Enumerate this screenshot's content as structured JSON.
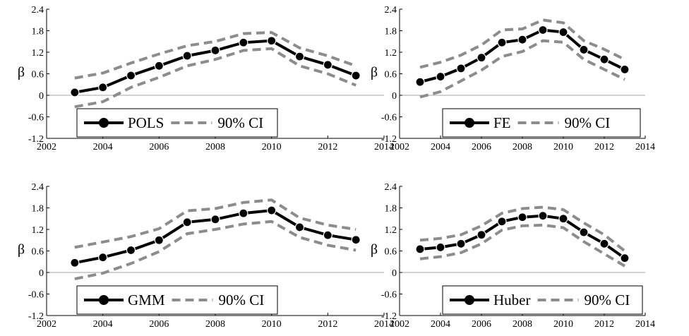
{
  "chart_data": [
    {
      "type": "line",
      "legend": [
        "POLS",
        "90% CI"
      ],
      "ylabel": "β",
      "xlim": [
        2002,
        2014
      ],
      "ylim": [
        -1.2,
        2.4
      ],
      "xticks": [
        "2002",
        "2004",
        "2006",
        "2008",
        "2010",
        "2012",
        "2014"
      ],
      "yticks": [
        "2.4",
        "1.8",
        "1.2",
        "0.6",
        "0",
        "-0.6",
        "-1.2"
      ],
      "x": [
        2003,
        2004,
        2005,
        2006,
        2007,
        2008,
        2009,
        2010,
        2011,
        2012,
        2013
      ],
      "series": [
        {
          "name": "POLS",
          "values": [
            0.08,
            0.22,
            0.55,
            0.82,
            1.1,
            1.25,
            1.47,
            1.52,
            1.08,
            0.85,
            0.55
          ]
        },
        {
          "name": "90% CI",
          "values": [
            0.48,
            0.62,
            0.9,
            1.15,
            1.38,
            1.5,
            1.72,
            1.75,
            1.32,
            1.1,
            0.82
          ]
        },
        {
          "values": [
            -0.32,
            -0.18,
            0.22,
            0.5,
            0.82,
            1.0,
            1.25,
            1.3,
            0.82,
            0.6,
            0.28
          ]
        }
      ]
    },
    {
      "type": "line",
      "legend": [
        "FE",
        "90% CI"
      ],
      "ylabel": "β",
      "xlim": [
        2002,
        2014
      ],
      "ylim": [
        -1.2,
        2.4
      ],
      "xticks": [
        "2002",
        "2004",
        "2006",
        "2008",
        "2010",
        "2012",
        "2014"
      ],
      "yticks": [
        "2.4",
        "1.8",
        "1.2",
        "0.6",
        "0",
        "-0.6",
        "-1.2"
      ],
      "x": [
        2003,
        2004,
        2005,
        2006,
        2007,
        2008,
        2009,
        2010,
        2011,
        2012,
        2013
      ],
      "series": [
        {
          "name": "FE",
          "values": [
            0.37,
            0.52,
            0.75,
            1.05,
            1.47,
            1.55,
            1.82,
            1.76,
            1.27,
            1.0,
            0.72
          ]
        },
        {
          "name": "90% CI",
          "values": [
            0.78,
            0.92,
            1.12,
            1.4,
            1.82,
            1.85,
            2.1,
            2.02,
            1.52,
            1.28,
            1.0
          ]
        },
        {
          "values": [
            -0.05,
            0.1,
            0.4,
            0.7,
            1.08,
            1.22,
            1.52,
            1.48,
            1.0,
            0.72,
            0.44
          ]
        }
      ]
    },
    {
      "type": "line",
      "legend": [
        "GMM",
        "90% CI"
      ],
      "ylabel": "β",
      "xlim": [
        2002,
        2014
      ],
      "ylim": [
        -1.2,
        2.4
      ],
      "xticks": [
        "2002",
        "2004",
        "2006",
        "2008",
        "2010",
        "2012",
        "2014"
      ],
      "yticks": [
        "2.4",
        "1.8",
        "1.2",
        "0.6",
        "0",
        "-0.6",
        "-1.2"
      ],
      "x": [
        2003,
        2004,
        2005,
        2006,
        2007,
        2008,
        2009,
        2010,
        2011,
        2012,
        2013
      ],
      "series": [
        {
          "name": "GMM",
          "values": [
            0.27,
            0.42,
            0.62,
            0.9,
            1.4,
            1.48,
            1.65,
            1.73,
            1.26,
            1.04,
            0.91
          ]
        },
        {
          "name": "90% CI",
          "values": [
            0.7,
            0.85,
            1.0,
            1.22,
            1.72,
            1.78,
            1.95,
            2.02,
            1.52,
            1.32,
            1.2
          ]
        },
        {
          "values": [
            -0.18,
            -0.02,
            0.25,
            0.58,
            1.08,
            1.2,
            1.35,
            1.42,
            0.98,
            0.76,
            0.62
          ]
        }
      ]
    },
    {
      "type": "line",
      "legend": [
        "Huber",
        "90% CI"
      ],
      "ylabel": "β",
      "xlim": [
        2002,
        2014
      ],
      "ylim": [
        -1.2,
        2.4
      ],
      "xticks": [
        "2002",
        "2004",
        "2006",
        "2008",
        "2010",
        "2012",
        "2014"
      ],
      "yticks": [
        "2.4",
        "1.8",
        "1.2",
        "0.6",
        "0",
        "-0.6",
        "-1.2"
      ],
      "x": [
        2003,
        2004,
        2005,
        2006,
        2007,
        2008,
        2009,
        2010,
        2011,
        2012,
        2013
      ],
      "series": [
        {
          "name": "Huber",
          "values": [
            0.65,
            0.7,
            0.8,
            1.05,
            1.42,
            1.54,
            1.58,
            1.5,
            1.12,
            0.8,
            0.4
          ]
        },
        {
          "name": "90% CI",
          "values": [
            0.9,
            0.95,
            1.05,
            1.3,
            1.65,
            1.78,
            1.82,
            1.75,
            1.38,
            1.05,
            0.6
          ]
        },
        {
          "values": [
            0.38,
            0.44,
            0.55,
            0.8,
            1.18,
            1.3,
            1.32,
            1.25,
            0.86,
            0.52,
            0.18
          ]
        }
      ]
    }
  ],
  "colors": {
    "estimate": "#000000",
    "ci": "#8c8c8c",
    "zero_line": "#a6a6a6",
    "axis": "#000000"
  }
}
